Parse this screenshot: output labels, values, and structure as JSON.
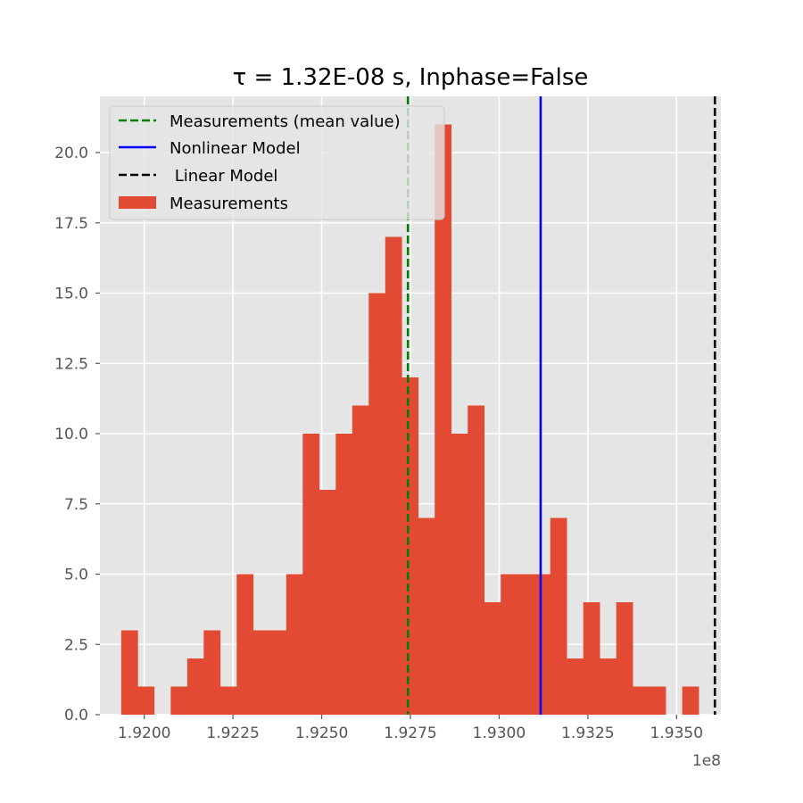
{
  "chart_data": {
    "type": "bar",
    "title": "τ = 1.32E-08 s, Inphase=False",
    "xlabel": "",
    "ylabel": "",
    "x_offset_label": "1e8",
    "x_scale": 100000000,
    "xlim": [
      1.91875,
      1.93625
    ],
    "ylim": [
      0,
      22
    ],
    "grid": true,
    "legend_position": "upper-left",
    "x_ticks": [
      1.92,
      1.9225,
      1.925,
      1.9275,
      1.93,
      1.9325,
      1.935
    ],
    "x_tick_labels": [
      "1.9200",
      "1.9225",
      "1.9250",
      "1.9275",
      "1.9300",
      "1.9325",
      "1.9350"
    ],
    "y_ticks": [
      0,
      2.5,
      5,
      7.5,
      10,
      12.5,
      15,
      17.5,
      20
    ],
    "y_tick_labels": [
      "0.0",
      "2.5",
      "5.0",
      "7.5",
      "10.0",
      "12.5",
      "15.0",
      "17.5",
      "20.0"
    ],
    "bin_start": 1.91935,
    "bin_width": 0.000465,
    "counts": [
      3,
      1,
      0,
      1,
      2,
      3,
      1,
      5,
      3,
      3,
      5,
      10,
      8,
      10,
      11,
      15,
      17,
      12,
      7,
      21,
      10,
      11,
      4,
      5,
      5,
      5,
      7,
      2,
      4,
      2,
      4,
      1,
      1,
      0,
      1
    ],
    "series": [
      {
        "name": "Measurements (mean value)",
        "kind": "vline",
        "x": 1.92743,
        "color": "#008000",
        "dash": "dashed"
      },
      {
        "name": "Nonlinear Model",
        "kind": "vline",
        "x": 1.93117,
        "color": "#0000ff",
        "dash": "solid"
      },
      {
        "name": " Linear Model",
        "kind": "vline",
        "x": 1.93608,
        "color": "#000000",
        "dash": "dashed"
      },
      {
        "name": "Measurements",
        "kind": "histogram",
        "color": "#e24a33"
      }
    ],
    "colors": {
      "axes_bg": "#e5e5e5",
      "grid": "#ffffff",
      "bar": "#e24a33"
    }
  }
}
